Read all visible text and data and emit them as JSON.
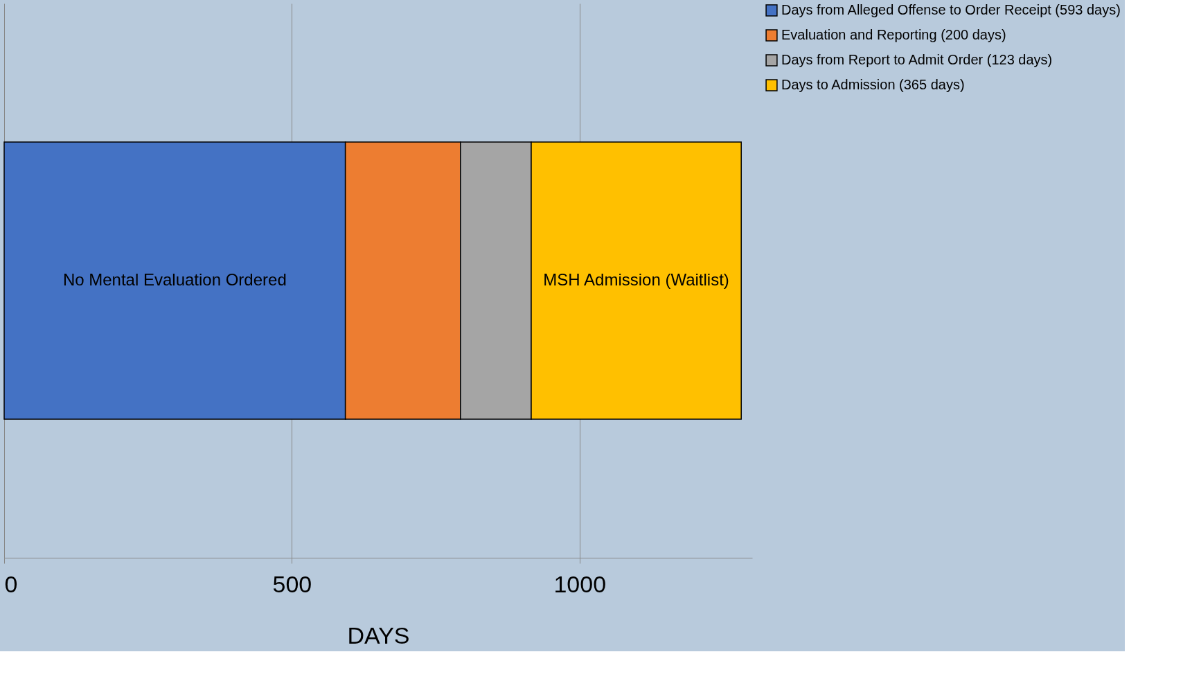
{
  "chart_data": {
    "type": "bar",
    "orientation": "horizontal",
    "stacked": true,
    "categories": [
      null
    ],
    "xlabel": "DAYS",
    "xlim": [
      0,
      1300
    ],
    "xticks": [
      0,
      500,
      1000
    ],
    "grid": "x",
    "legend": "right",
    "series": [
      {
        "name": "Days from Alleged Offense to Order Receipt (593 days)",
        "color": "#4472c4",
        "values": [
          593
        ]
      },
      {
        "name": "Evaluation and Reporting (200 days)",
        "color": "#ed7d31",
        "values": [
          200
        ]
      },
      {
        "name": "Days from Report to Admit Order (123 days)",
        "color": "#a5a5a5",
        "values": [
          123
        ]
      },
      {
        "name": "Days to Admission (365 days)",
        "color": "#ffc000",
        "values": [
          365
        ]
      }
    ],
    "annotations": [
      "No Mental Evaluation Ordered",
      "MSH Admission (Waitlist)"
    ]
  }
}
